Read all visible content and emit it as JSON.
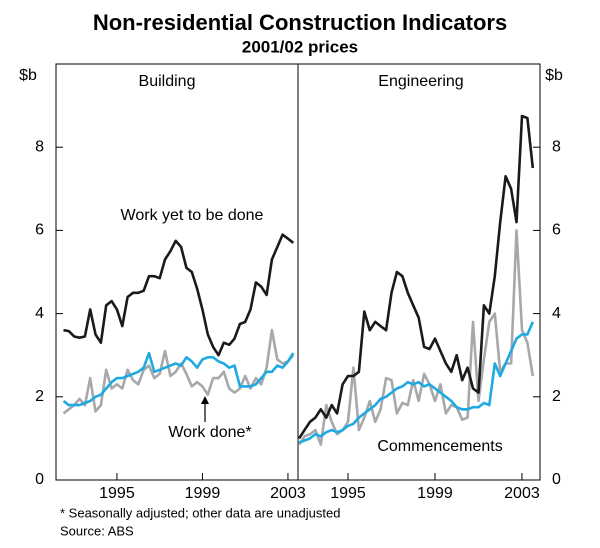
{
  "title": "Non-residential Construction Indicators",
  "subtitle": "2001/02 prices",
  "notes": [
    "*     Seasonally adjusted; other data are unadjusted",
    "Source: ABS"
  ],
  "chart_data": [
    {
      "type": "line",
      "title": "Building",
      "ylabel": "$b",
      "xlim": [
        1992.15,
        2003.47
      ],
      "xticks": [
        1995,
        1999,
        2003
      ],
      "ylim": [
        0,
        10
      ],
      "yticks": [
        0,
        2,
        4,
        6,
        8
      ],
      "x": [
        1992.5,
        1992.75,
        1993,
        1993.25,
        1993.5,
        1993.75,
        1994,
        1994.25,
        1994.5,
        1994.75,
        1995,
        1995.25,
        1995.5,
        1995.75,
        1996,
        1996.25,
        1996.5,
        1996.75,
        1997,
        1997.25,
        1997.5,
        1997.75,
        1998,
        1998.25,
        1998.5,
        1998.75,
        1999,
        1999.25,
        1999.5,
        1999.75,
        2000,
        2000.25,
        2000.5,
        2000.75,
        2001,
        2001.25,
        2001.5,
        2001.75,
        2002,
        2002.25,
        2002.5,
        2002.75,
        2003,
        2003.25
      ],
      "series": [
        {
          "color": "#a6a8ab",
          "values": [
            1.6,
            1.7,
            1.8,
            1.95,
            1.8,
            2.45,
            1.65,
            1.8,
            2.65,
            2.2,
            2.3,
            2.2,
            2.65,
            2.4,
            2.3,
            2.65,
            2.75,
            2.45,
            2.55,
            3.1,
            2.5,
            2.6,
            2.8,
            2.55,
            2.25,
            2.35,
            2.25,
            2.05,
            2.45,
            2.45,
            2.6,
            2.2,
            2.1,
            2.2,
            2.5,
            2.2,
            2.45,
            2.3,
            2.7,
            3.6,
            2.9,
            2.8,
            2.85,
            3.0
          ]
        },
        {
          "color": "#1fa9e1",
          "values": [
            1.9,
            1.8,
            1.8,
            1.8,
            1.85,
            1.9,
            2.0,
            2.05,
            2.2,
            2.35,
            2.45,
            2.45,
            2.5,
            2.55,
            2.6,
            2.7,
            3.05,
            2.6,
            2.65,
            2.7,
            2.75,
            2.8,
            2.75,
            2.95,
            2.85,
            2.7,
            2.9,
            2.95,
            2.95,
            2.85,
            2.8,
            2.7,
            2.75,
            2.25,
            2.25,
            2.25,
            2.3,
            2.45,
            2.6,
            2.6,
            2.75,
            2.7,
            2.85,
            3.05
          ]
        },
        {
          "color": "#1a1a1a",
          "values": [
            3.6,
            3.58,
            3.45,
            3.42,
            3.45,
            4.1,
            3.5,
            3.3,
            4.2,
            4.3,
            4.1,
            3.7,
            4.4,
            4.5,
            4.5,
            4.55,
            4.9,
            4.9,
            4.85,
            5.3,
            5.5,
            5.75,
            5.6,
            5.1,
            5.0,
            4.6,
            4.1,
            3.5,
            3.2,
            3.0,
            3.3,
            3.25,
            3.4,
            3.75,
            3.8,
            4.1,
            4.75,
            4.65,
            4.45,
            5.3,
            5.6,
            5.9,
            5.8,
            5.7
          ]
        }
      ],
      "annotations": [
        "Work yet to be done",
        "Work done*"
      ]
    },
    {
      "type": "line",
      "title": "Engineering",
      "ylabel": "$b",
      "xlim": [
        1992.7,
        2003.83
      ],
      "xticks": [
        1995,
        1999,
        2003
      ],
      "ylim": [
        0,
        10
      ],
      "yticks": [
        0,
        2,
        4,
        6,
        8
      ],
      "x": [
        1992.75,
        1993,
        1993.25,
        1993.5,
        1993.75,
        1994,
        1994.25,
        1994.5,
        1994.75,
        1995,
        1995.25,
        1995.5,
        1995.75,
        1996,
        1996.25,
        1996.5,
        1996.75,
        1997,
        1997.25,
        1997.5,
        1997.75,
        1998,
        1998.25,
        1998.5,
        1998.75,
        1999,
        1999.25,
        1999.5,
        1999.75,
        2000,
        2000.25,
        2000.5,
        2000.75,
        2001,
        2001.25,
        2001.5,
        2001.75,
        2002,
        2002.25,
        2002.5,
        2002.75,
        2003,
        2003.25,
        2003.5
      ],
      "series": [
        {
          "color": "#a6a8ab",
          "values": [
            0.85,
            1.05,
            1.1,
            1.2,
            0.85,
            1.8,
            1.4,
            1.1,
            1.2,
            1.4,
            2.7,
            1.2,
            1.5,
            1.9,
            1.4,
            1.7,
            2.45,
            2.4,
            1.6,
            1.85,
            1.8,
            2.4,
            1.9,
            2.55,
            2.3,
            1.9,
            2.3,
            1.6,
            1.8,
            1.75,
            1.45,
            1.5,
            3.8,
            1.9,
            2.9,
            3.8,
            4.0,
            2.6,
            2.8,
            2.8,
            6.0,
            3.6,
            3.3,
            2.5
          ]
        },
        {
          "color": "#1fa9e1",
          "values": [
            0.9,
            0.95,
            1.0,
            1.1,
            1.05,
            1.15,
            1.2,
            1.15,
            1.2,
            1.3,
            1.35,
            1.5,
            1.6,
            1.7,
            1.8,
            1.95,
            2.0,
            2.1,
            2.2,
            2.25,
            2.35,
            2.3,
            2.35,
            2.25,
            2.3,
            2.2,
            2.1,
            2.0,
            1.9,
            1.75,
            1.7,
            1.7,
            1.75,
            1.75,
            1.85,
            1.8,
            2.8,
            2.5,
            2.8,
            3.1,
            3.4,
            3.5,
            3.5,
            3.8
          ]
        },
        {
          "color": "#1a1a1a",
          "values": [
            1.0,
            1.2,
            1.4,
            1.5,
            1.7,
            1.5,
            1.8,
            1.6,
            2.3,
            2.5,
            2.5,
            2.6,
            4.05,
            3.6,
            3.8,
            3.7,
            3.6,
            4.5,
            5.0,
            4.9,
            4.5,
            4.2,
            3.9,
            3.2,
            3.15,
            3.4,
            3.1,
            2.8,
            2.6,
            3.0,
            2.4,
            2.7,
            2.2,
            2.1,
            4.2,
            4.0,
            4.9,
            6.2,
            7.3,
            7.0,
            6.2,
            8.75,
            8.7,
            7.5
          ]
        }
      ],
      "annotations": [
        "Commencements"
      ]
    }
  ]
}
